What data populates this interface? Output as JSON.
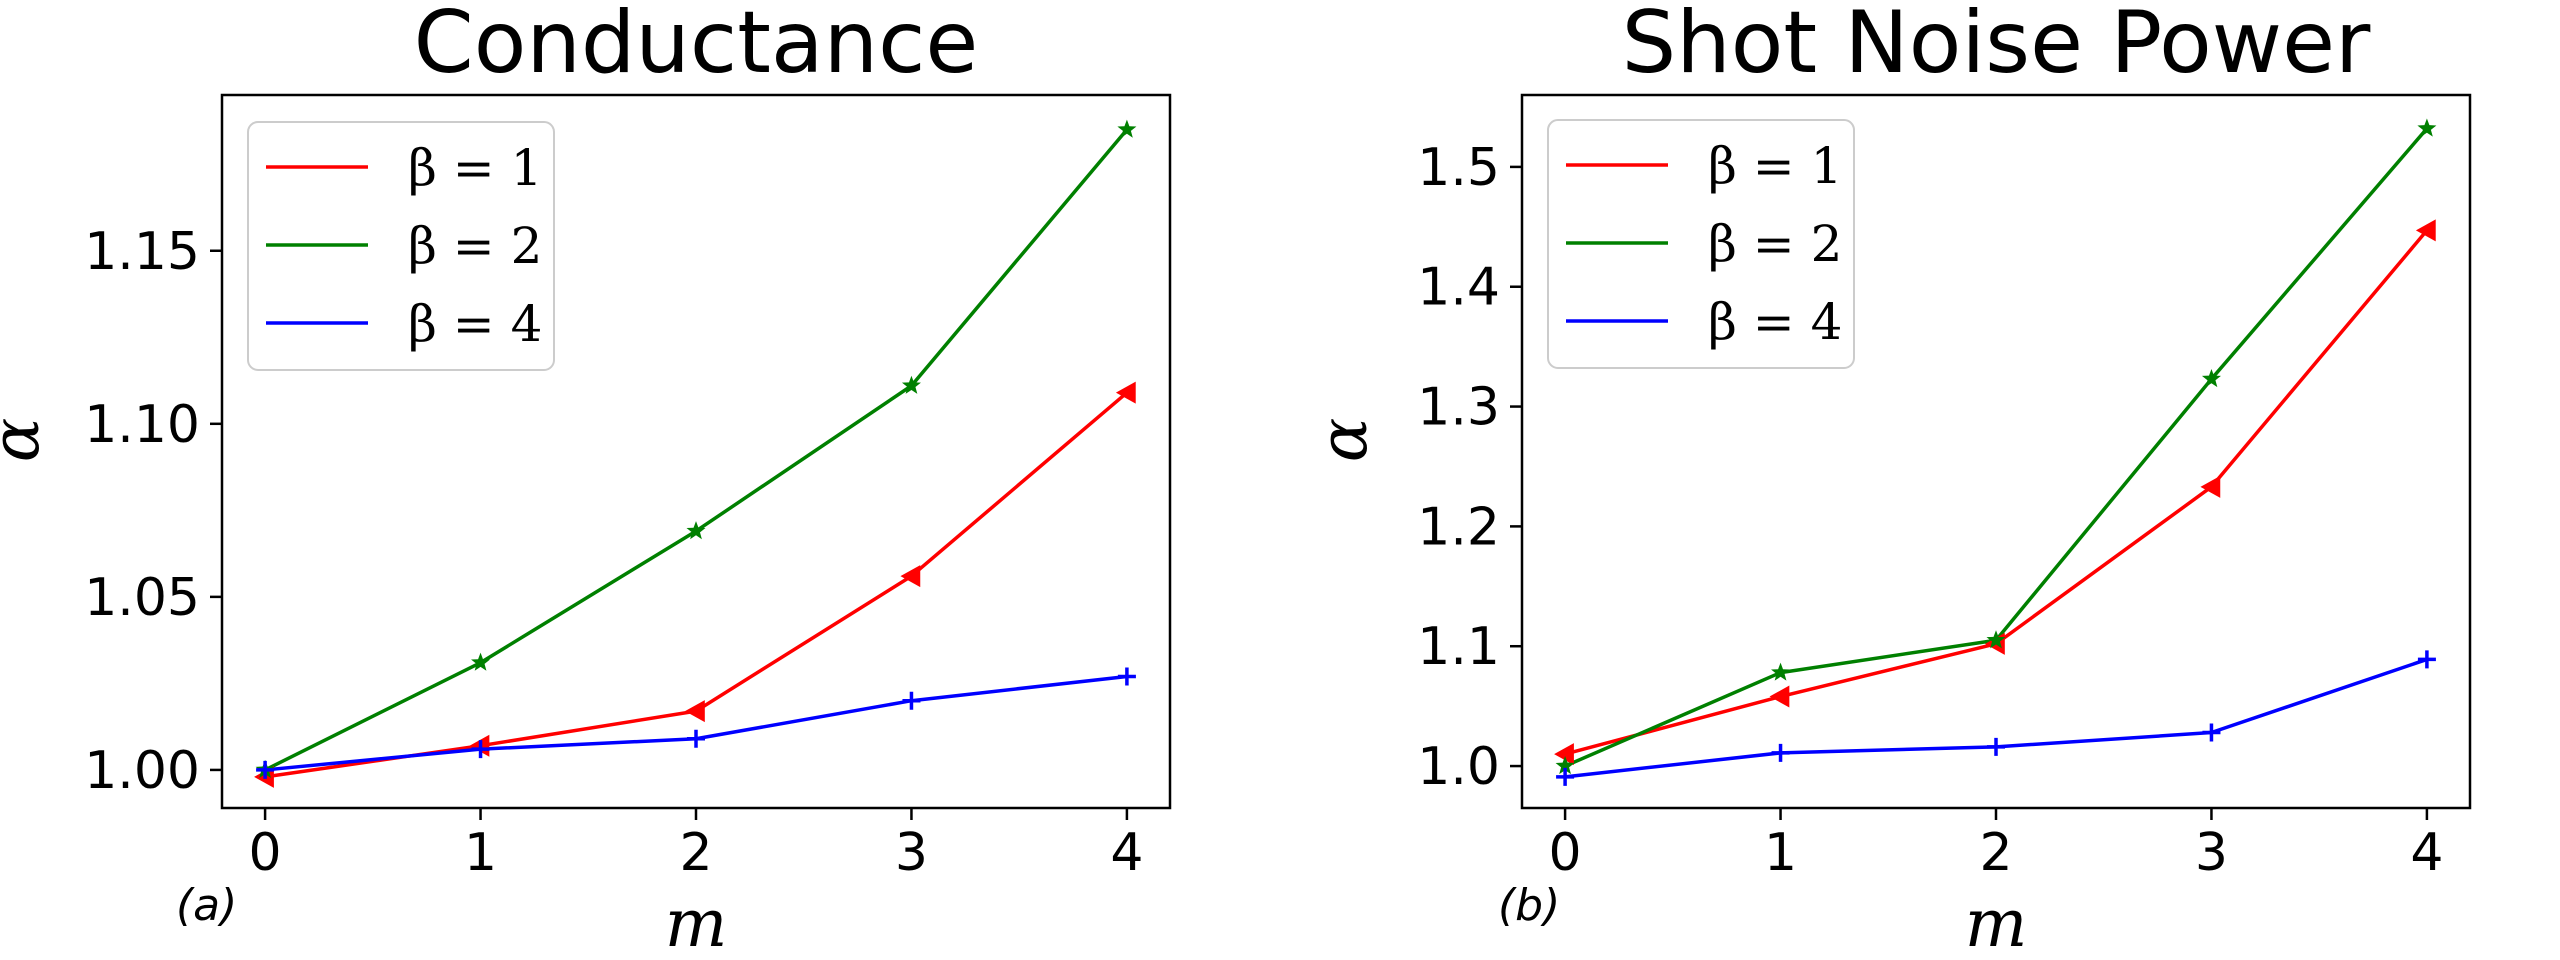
{
  "figure": {
    "panel_a_label": "(a)",
    "panel_b_label": "(b)"
  },
  "chart_data": [
    {
      "type": "line",
      "title": "Conductance",
      "xlabel": "m",
      "ylabel": "α",
      "x": [
        0,
        1,
        2,
        3,
        4
      ],
      "xticks": [
        "0",
        "1",
        "2",
        "3",
        "4"
      ],
      "yticks": [
        1.0,
        1.05,
        1.1,
        1.15
      ],
      "ytick_labels": [
        "1.00",
        "1.05",
        "1.10",
        "1.15"
      ],
      "xlim": [
        -0.2,
        4.2
      ],
      "ylim": [
        0.989,
        1.195
      ],
      "grid": false,
      "legend_position": "upper-left",
      "series": [
        {
          "name": "β = 1",
          "color": "#ff0000",
          "marker": "triangle-left",
          "values": [
            0.998,
            1.007,
            1.017,
            1.056,
            1.109
          ]
        },
        {
          "name": "β = 2",
          "color": "#008000",
          "marker": "star",
          "values": [
            1.0,
            1.031,
            1.069,
            1.111,
            1.185
          ]
        },
        {
          "name": "β = 4",
          "color": "#0000ff",
          "marker": "plus",
          "values": [
            1.0,
            1.006,
            1.009,
            1.02,
            1.027
          ]
        }
      ]
    },
    {
      "type": "line",
      "title": "Shot Noise Power",
      "xlabel": "m",
      "ylabel": "α",
      "x": [
        0,
        1,
        2,
        3,
        4
      ],
      "xticks": [
        "0",
        "1",
        "2",
        "3",
        "4"
      ],
      "yticks": [
        1.0,
        1.1,
        1.2,
        1.3,
        1.4,
        1.5
      ],
      "ytick_labels": [
        "1.0",
        "1.1",
        "1.2",
        "1.3",
        "1.4",
        "1.5"
      ],
      "xlim": [
        -0.2,
        4.2
      ],
      "ylim": [
        0.965,
        1.56
      ],
      "grid": false,
      "legend_position": "upper-left",
      "series": [
        {
          "name": "β = 1",
          "color": "#ff0000",
          "marker": "triangle-left",
          "values": [
            1.01,
            1.058,
            1.102,
            1.233,
            1.447
          ]
        },
        {
          "name": "β = 2",
          "color": "#008000",
          "marker": "star",
          "values": [
            1.0,
            1.078,
            1.105,
            1.323,
            1.532
          ]
        },
        {
          "name": "β = 4",
          "color": "#0000ff",
          "marker": "plus",
          "values": [
            0.991,
            1.011,
            1.016,
            1.028,
            1.089
          ]
        }
      ]
    }
  ]
}
